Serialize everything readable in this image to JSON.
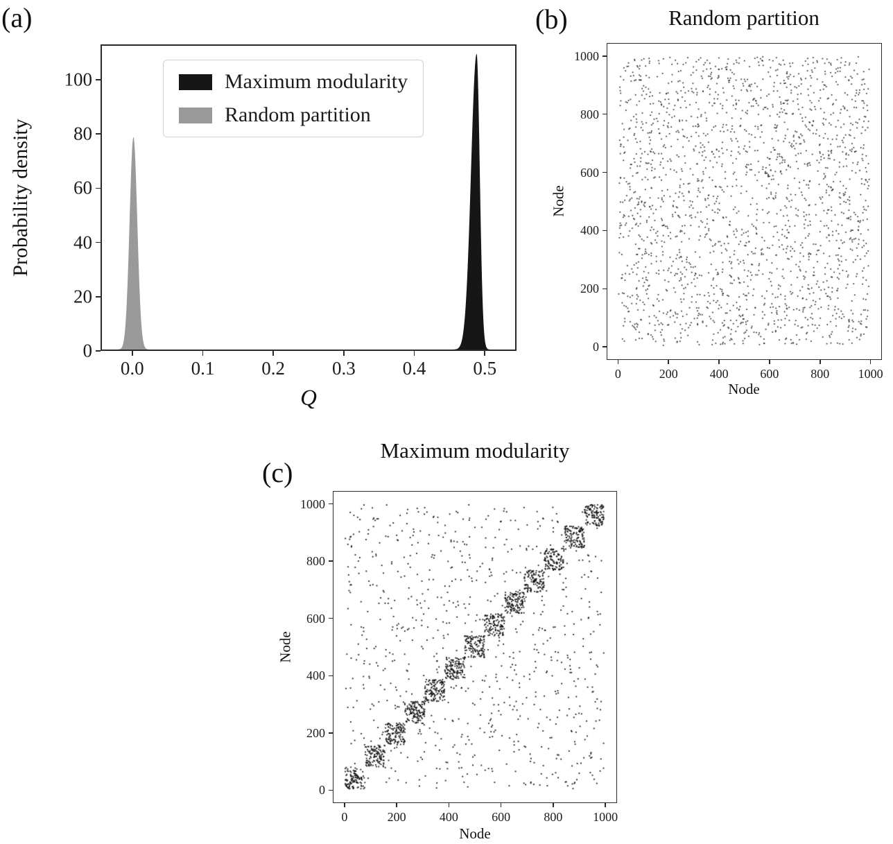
{
  "figure": {
    "background": "#ffffff",
    "panels": {
      "a": {
        "label": "(a)"
      },
      "b": {
        "label": "(b)"
      },
      "c": {
        "label": "(c)"
      }
    }
  },
  "chart_data": [
    {
      "id": "a",
      "type": "area",
      "title": "",
      "description": "Probability density of modularity Q: maximum-modularity partitions peak near Q=0.49 (height ~110), random partitions peak near Q=0.0 (height ~79)",
      "xlabel": "Q",
      "ylabel": "Probability density",
      "xlim": [
        -0.045,
        0.545
      ],
      "ylim": [
        0,
        113
      ],
      "xticks": [
        0.0,
        0.1,
        0.2,
        0.3,
        0.4,
        0.5
      ],
      "xticklabels": [
        "0.0",
        "0.1",
        "0.2",
        "0.3",
        "0.4",
        "0.5"
      ],
      "yticks": [
        0,
        20,
        40,
        60,
        80,
        100
      ],
      "yticklabels": [
        "0",
        "20",
        "40",
        "60",
        "80",
        "100"
      ],
      "grid": false,
      "legend": {
        "position": "upper left",
        "entries": [
          {
            "label": "Maximum modularity",
            "color": "#161616"
          },
          {
            "label": "Random partition",
            "color": "#9a9a9a"
          }
        ]
      },
      "series": [
        {
          "name": "Random partition",
          "color": "#9a9a9a",
          "shape": "normal",
          "mean": 0.0,
          "sd_left": 0.0055,
          "sd_right": 0.0055,
          "peak_density": 79
        },
        {
          "name": "Maximum modularity",
          "color": "#161616",
          "shape": "skew-normal",
          "mean": 0.49,
          "sd_left": 0.008,
          "sd_right": 0.0045,
          "peak_density": 110
        }
      ]
    },
    {
      "id": "b",
      "type": "scatter",
      "title": "Random partition",
      "description": "Adjacency-matrix scatter of a network with nodes ordered by a random partition: edges spread uniformly with no block structure",
      "xlabel": "Node",
      "ylabel": "Node",
      "xlim": [
        -45,
        1045
      ],
      "ylim": [
        -45,
        1045
      ],
      "xticks": [
        0,
        200,
        400,
        600,
        800,
        1000
      ],
      "xticklabels": [
        "0",
        "200",
        "400",
        "600",
        "800",
        "1000"
      ],
      "yticks": [
        0,
        200,
        400,
        600,
        800,
        1000
      ],
      "yticklabels": [
        "0",
        "200",
        "400",
        "600",
        "800",
        "1000"
      ],
      "grid": false,
      "color": "#111111",
      "marker_size": 1.6,
      "n_points_approx": 2100,
      "points_spec": {
        "generator": "uniform_symmetric",
        "pairs": 1050,
        "node_range": [
          0,
          1000
        ],
        "seed": 1234
      }
    },
    {
      "id": "c",
      "type": "scatter",
      "title": "Maximum modularity",
      "description": "Adjacency-matrix scatter with nodes ordered by the maximum-modularity partition: ~13 dense community blocks along the diagonal plus sparse off-diagonal edges",
      "xlabel": "Node",
      "ylabel": "Node",
      "xlim": [
        -45,
        1045
      ],
      "ylim": [
        -45,
        1045
      ],
      "xticks": [
        0,
        200,
        400,
        600,
        800,
        1000
      ],
      "xticklabels": [
        "0",
        "200",
        "400",
        "600",
        "800",
        "1000"
      ],
      "yticks": [
        0,
        200,
        400,
        600,
        800,
        1000
      ],
      "yticklabels": [
        "0",
        "200",
        "400",
        "600",
        "800",
        "1000"
      ],
      "grid": false,
      "color": "#111111",
      "marker_size": 1.8,
      "n_points_approx": 2450,
      "points_spec": {
        "generator": "block_diagonal_symmetric",
        "n_nodes": 1000,
        "communities": 13,
        "within_pairs_per_community": 62,
        "between_pairs": 420,
        "seed": 77
      }
    }
  ]
}
